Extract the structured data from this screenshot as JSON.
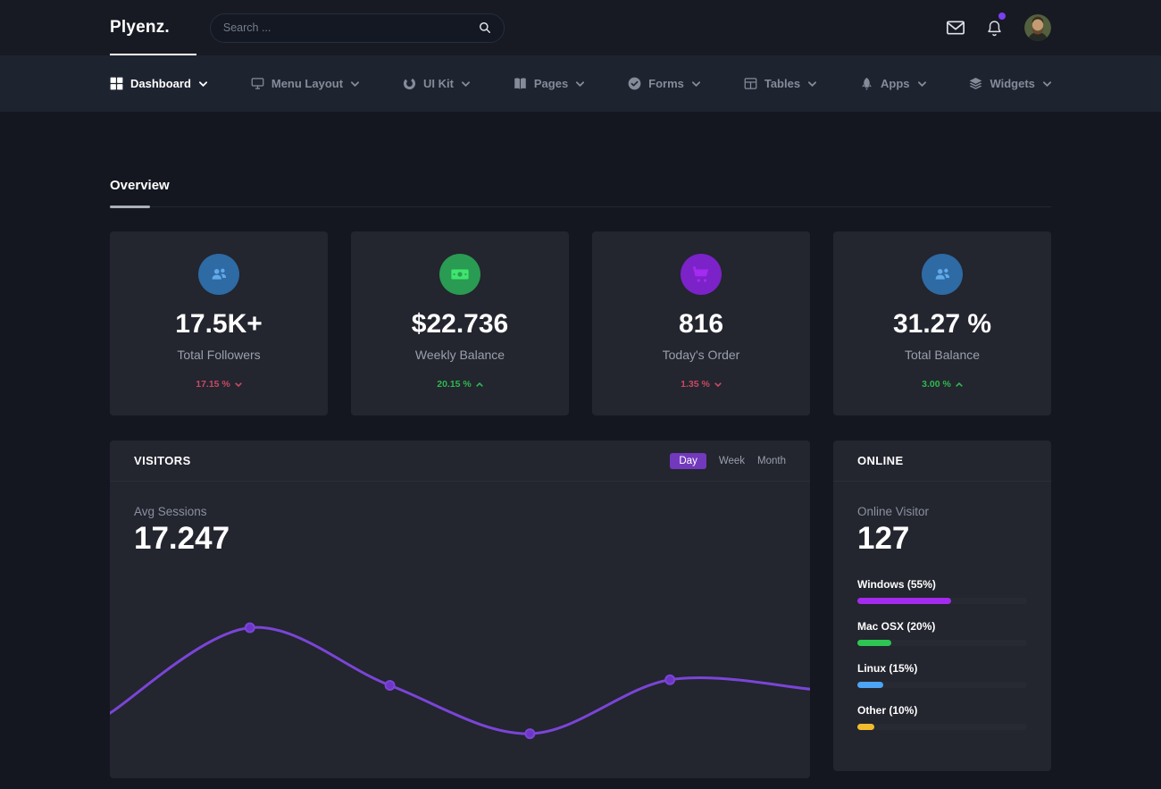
{
  "header": {
    "logo": "Plyenz.",
    "search_placeholder": "Search ..."
  },
  "nav": {
    "items": [
      {
        "label": "Dashboard",
        "icon": "grid-icon",
        "active": true
      },
      {
        "label": "Menu Layout",
        "icon": "monitor-icon",
        "active": false
      },
      {
        "label": "UI Kit",
        "icon": "loader-icon",
        "active": false
      },
      {
        "label": "Pages",
        "icon": "book-icon",
        "active": false
      },
      {
        "label": "Forms",
        "icon": "check-circle-icon",
        "active": false
      },
      {
        "label": "Tables",
        "icon": "table-icon",
        "active": false
      },
      {
        "label": "Apps",
        "icon": "rocket-icon",
        "active": false
      },
      {
        "label": "Widgets",
        "icon": "layers-icon",
        "active": false
      }
    ]
  },
  "overview": {
    "title": "Overview"
  },
  "stat_cards": [
    {
      "value": "17.5K+",
      "label": "Total Followers",
      "trend": "17.15 %",
      "trend_dir": "down",
      "icon": "users-icon",
      "accent": "blue"
    },
    {
      "value": "$22.736",
      "label": "Weekly Balance",
      "trend": "20.15 %",
      "trend_dir": "up",
      "icon": "banknote-icon",
      "accent": "green"
    },
    {
      "value": "816",
      "label": "Today's Order",
      "trend": "1.35 %",
      "trend_dir": "down",
      "icon": "cart-icon",
      "accent": "purple"
    },
    {
      "value": "31.27 %",
      "label": "Total Balance",
      "trend": "3.00 %",
      "trend_dir": "up",
      "icon": "users-icon",
      "accent": "blue"
    }
  ],
  "visitors": {
    "title": "VISITORS",
    "tabs": [
      {
        "label": "Day",
        "active": true
      },
      {
        "label": "Week",
        "active": false
      },
      {
        "label": "Month",
        "active": false
      }
    ],
    "metric_label": "Avg Sessions",
    "metric_value": "17.247",
    "chart_data": {
      "type": "line",
      "title": "Avg Sessions",
      "x_rel": [
        0,
        0.2,
        0.4,
        0.6,
        0.8,
        1.0
      ],
      "y_rel": [
        0.35,
        0.81,
        0.5,
        0.24,
        0.53,
        0.48
      ],
      "marker_indices": [
        1,
        2,
        3,
        4
      ],
      "line_color": "#7a45d6",
      "marker_fill": "#6d36c9",
      "axes": "hidden",
      "grid": false,
      "legend": "none"
    }
  },
  "online": {
    "title": "ONLINE",
    "metric_label": "Online Visitor",
    "metric_value": "127",
    "os_stats": [
      {
        "label": "Windows (55%)",
        "percent": 55,
        "color": "#a42aee"
      },
      {
        "label": "Mac OSX (20%)",
        "percent": 20,
        "color": "#2dc653"
      },
      {
        "label": "Linux (15%)",
        "percent": 15,
        "color": "#4da3f5"
      },
      {
        "label": "Other (10%)",
        "percent": 10,
        "color": "#f0bc2d"
      }
    ]
  },
  "colors": {
    "accent_purple": "#7239bd",
    "chart_line": "#7a45d6",
    "trend_up": "#2fb84f",
    "trend_down": "#c74a62",
    "notification_dot": "#7a3ff0"
  }
}
